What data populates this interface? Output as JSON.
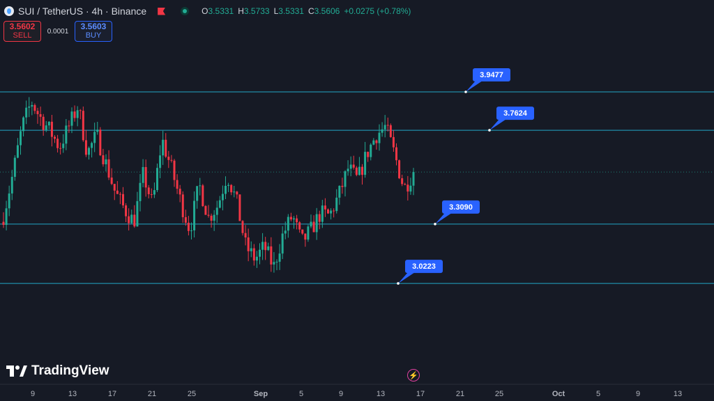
{
  "header": {
    "symbol": "SUI / TetherUS · 4h · Binance",
    "ohlc": [
      {
        "key": "O",
        "value": "3.5331"
      },
      {
        "key": "H",
        "value": "3.5733"
      },
      {
        "key": "L",
        "value": "3.5331"
      },
      {
        "key": "C",
        "value": "3.5606"
      }
    ],
    "change": "+0.0275 (+0.78%)"
  },
  "trade": {
    "sell_price": "3.5602",
    "sell_label": "SELL",
    "spread": "0.0001",
    "buy_price": "3.5603",
    "buy_label": "BUY"
  },
  "branding": {
    "logo_text": "TradingView"
  },
  "colors": {
    "background": "#161a25",
    "up": "#22ab94",
    "down": "#f23645",
    "level_line": "#22a7c8",
    "label_bg": "#2962ff"
  },
  "chart_data": {
    "type": "candlestick",
    "interval": "4h",
    "x_ticks": [
      "9",
      "13",
      "17",
      "21",
      "25",
      "Sep",
      "5",
      "9",
      "13",
      "17",
      "21",
      "25",
      "Oct",
      "5",
      "9",
      "13"
    ],
    "current_price": 3.5606,
    "horizontal_levels": [
      {
        "label": "3.9477",
        "value": 3.9477
      },
      {
        "label": "3.7624",
        "value": 3.7624
      },
      {
        "label": "3.3090",
        "value": 3.309
      },
      {
        "label": "3.0223",
        "value": 3.0223
      }
    ],
    "close_series_anchors": [
      3.35,
      3.55,
      3.78,
      3.9,
      3.82,
      3.76,
      3.68,
      3.78,
      3.88,
      3.65,
      3.74,
      3.6,
      3.46,
      3.38,
      3.32,
      3.55,
      3.4,
      3.72,
      3.58,
      3.42,
      3.28,
      3.5,
      3.34,
      3.4,
      3.55,
      3.42,
      3.2,
      3.14,
      3.2,
      3.1,
      3.26,
      3.35,
      3.22,
      3.28,
      3.36,
      3.35,
      3.45,
      3.58,
      3.52,
      3.65,
      3.74,
      3.78,
      3.64,
      3.48,
      3.56
    ]
  }
}
